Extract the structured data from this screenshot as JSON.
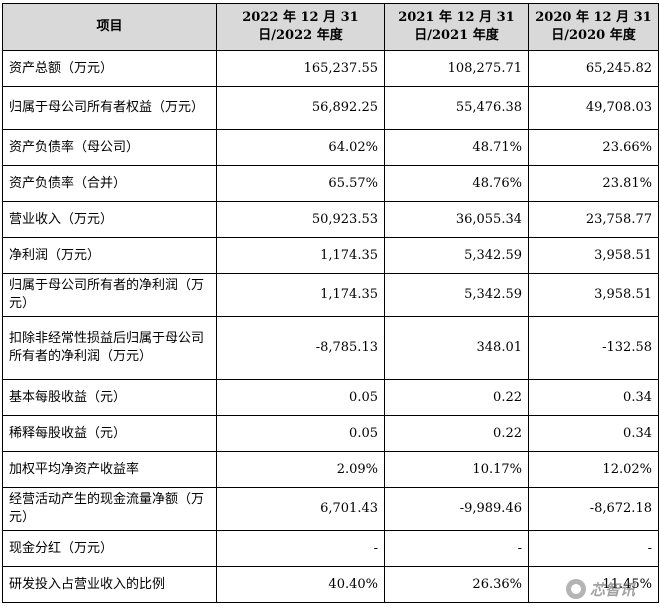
{
  "table": {
    "headers": [
      "项目",
      "2022 年 12 月 31 日/2022 年度",
      "2021 年 12 月 31 日/2021 年度",
      "2020 年 12 月 31 日/2020 年度"
    ],
    "rows": [
      {
        "label": "资产总额（万元）",
        "v2022": "165,237.55",
        "v2021": "108,275.71",
        "v2020": "65,245.82"
      },
      {
        "label": "归属于母公司所有者权益（万元）",
        "v2022": "56,892.25",
        "v2021": "55,476.38",
        "v2020": "49,708.03"
      },
      {
        "label": "资产负债率（母公司）",
        "v2022": "64.02%",
        "v2021": "48.71%",
        "v2020": "23.66%"
      },
      {
        "label": "资产负债率（合并）",
        "v2022": "65.57%",
        "v2021": "48.76%",
        "v2020": "23.81%"
      },
      {
        "label": "营业收入（万元）",
        "v2022": "50,923.53",
        "v2021": "36,055.34",
        "v2020": "23,758.77"
      },
      {
        "label": "净利润（万元）",
        "v2022": "1,174.35",
        "v2021": "5,342.59",
        "v2020": "3,958.51"
      },
      {
        "label": "归属于母公司所有者的净利润（万元）",
        "v2022": "1,174.35",
        "v2021": "5,342.59",
        "v2020": "3,958.51"
      },
      {
        "label": "扣除非经常性损益后归属于母公司所有者的净利润（万元）",
        "v2022": "-8,785.13",
        "v2021": "348.01",
        "v2020": "-132.58"
      },
      {
        "label": "基本每股收益（元）",
        "v2022": "0.05",
        "v2021": "0.22",
        "v2020": "0.34"
      },
      {
        "label": "稀释每股收益（元）",
        "v2022": "0.05",
        "v2021": "0.22",
        "v2020": "0.34"
      },
      {
        "label": "加权平均净资产收益率",
        "v2022": "2.09%",
        "v2021": "10.17%",
        "v2020": "12.02%"
      },
      {
        "label": "经营活动产生的现金流量净额（万元）",
        "v2022": "6,701.43",
        "v2021": "-9,989.46",
        "v2020": "-8,672.18"
      },
      {
        "label": "现金分红（万元）",
        "v2022": "-",
        "v2021": "-",
        "v2020": "-"
      },
      {
        "label": "研发投入占营业收入的比例",
        "v2022": "40.40%",
        "v2021": "26.36%",
        "v2020": "11.45%"
      }
    ]
  },
  "watermark": {
    "text": "芯智讯",
    "icon": "wechat-icon"
  }
}
